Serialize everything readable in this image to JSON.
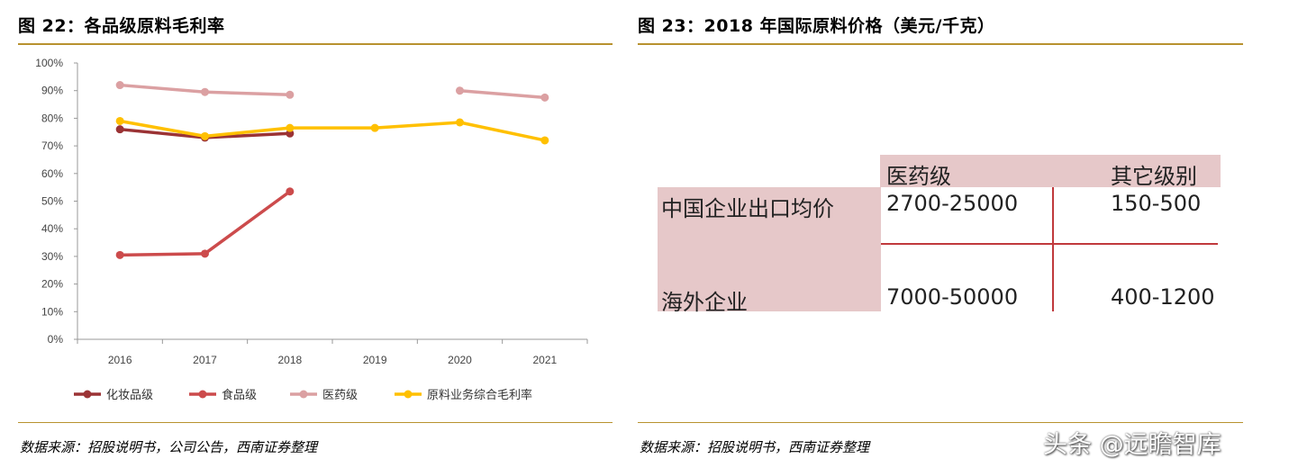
{
  "left_figure": {
    "title": "图 22：各品级原料毛利率",
    "source": "数据来源：招股说明书，公司公告，西南证券整理"
  },
  "right_figure": {
    "title": "图 23：2018 年国际原料价格（美元/千克）",
    "source": "数据来源：招股说明书，西南证券整理",
    "table": {
      "headers": [
        "医药级",
        "其它级别"
      ],
      "rows": [
        {
          "label": "中国企业出口均价",
          "values": [
            "2700-25000",
            "150-500"
          ]
        },
        {
          "label": "海外企业",
          "values": [
            "7000-50000",
            "400-1200"
          ]
        }
      ]
    }
  },
  "watermark": "头条 @远瞻智库",
  "chart_data": {
    "type": "line",
    "categories": [
      "2016",
      "2017",
      "2018",
      "2019",
      "2020",
      "2021"
    ],
    "y_ticks": [
      "0%",
      "10%",
      "20%",
      "30%",
      "40%",
      "50%",
      "60%",
      "70%",
      "80%",
      "90%",
      "100%"
    ],
    "ylim": [
      0,
      100
    ],
    "legend_position": "bottom",
    "series": [
      {
        "name": "化妆品级",
        "color": "#9b3335",
        "values": [
          76,
          73,
          74.5,
          null,
          null,
          null
        ]
      },
      {
        "name": "食品级",
        "color": "#cc4b4c",
        "values": [
          30.5,
          31,
          53.5,
          null,
          null,
          null
        ]
      },
      {
        "name": "医药级",
        "color": "#dba0a2",
        "values": [
          92,
          89.5,
          88.5,
          null,
          90,
          87.5
        ]
      },
      {
        "name": "原料业务综合毛利率",
        "color": "#ffc000",
        "values": [
          79,
          73.5,
          76.5,
          76.5,
          78.5,
          72
        ]
      }
    ]
  }
}
